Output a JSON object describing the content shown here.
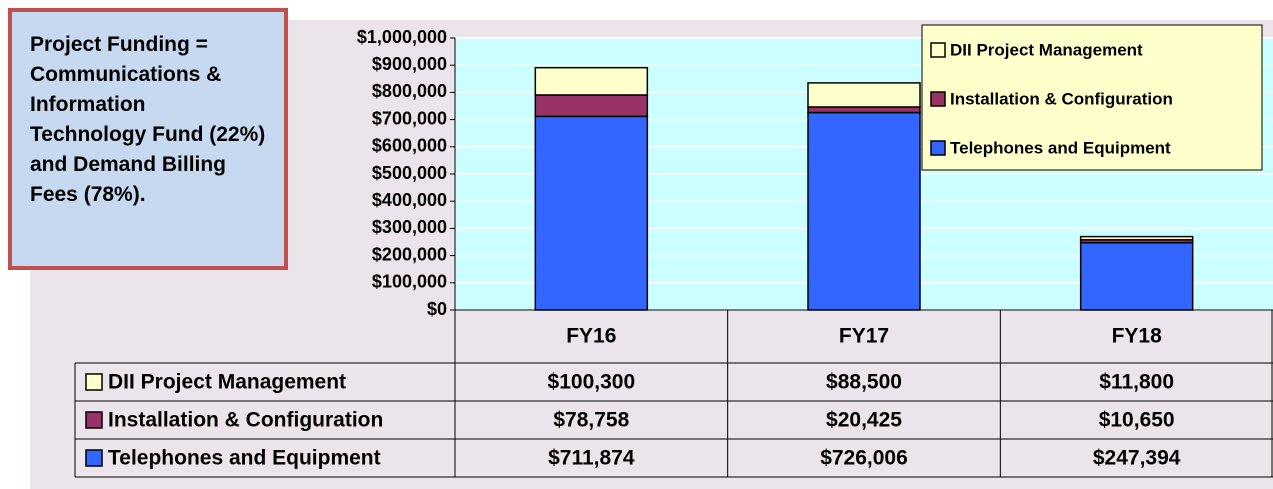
{
  "chart_data": {
    "type": "stacked_bar",
    "annotation": "Project Funding = Communications & Information Technology Fund (22%) and Demand Billing Fees (78%).",
    "categories": [
      "FY16",
      "FY17",
      "FY18"
    ],
    "series": [
      {
        "name": "Telephones and Equipment",
        "color": "#3366ff",
        "values": [
          711874,
          726006,
          247394
        ],
        "value_labels": [
          "$711,874",
          "$726,006",
          "$247,394"
        ]
      },
      {
        "name": "Installation & Configuration",
        "color": "#993366",
        "values": [
          78758,
          20425,
          10650
        ],
        "value_labels": [
          "$78,758",
          "$20,425",
          "$10,650"
        ]
      },
      {
        "name": "DII Project Management",
        "color": "#ffffcc",
        "values": [
          100300,
          88500,
          11800
        ],
        "value_labels": [
          "$100,300",
          "$88,500",
          "$11,800"
        ]
      }
    ],
    "ylim": [
      0,
      1000000
    ],
    "yticks": [
      {
        "value": 0,
        "label": "$0"
      },
      {
        "value": 100000,
        "label": "$100,000"
      },
      {
        "value": 200000,
        "label": "$200,000"
      },
      {
        "value": 300000,
        "label": "$300,000"
      },
      {
        "value": 400000,
        "label": "$400,000"
      },
      {
        "value": 500000,
        "label": "$500,000"
      },
      {
        "value": 600000,
        "label": "$600,000"
      },
      {
        "value": 700000,
        "label": "$700,000"
      },
      {
        "value": 800000,
        "label": "$800,000"
      },
      {
        "value": 900000,
        "label": "$900,000"
      },
      {
        "value": 1000000,
        "label": "$1,000,000"
      }
    ],
    "grid": true,
    "legend": "top-right",
    "plot_background": "#ccffff"
  }
}
